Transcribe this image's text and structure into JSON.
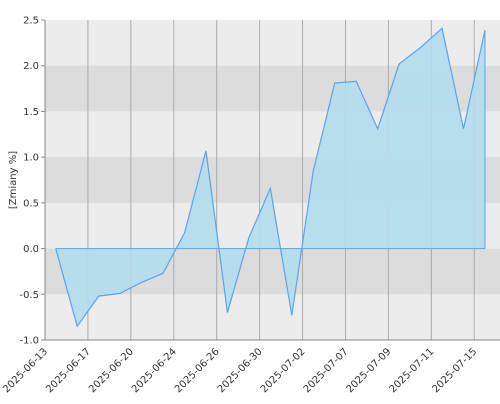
{
  "chart_data": {
    "type": "area",
    "ylabel": "[Zmiany %]",
    "x": [
      0.5,
      1.5,
      2.5,
      3.5,
      4.5,
      5.5,
      6.5,
      7.5,
      8.5,
      9.5,
      10.5,
      11.5,
      12.5,
      13.5,
      14.5,
      15.5,
      16.5,
      17.5,
      18.5,
      19.5,
      20.5
    ],
    "values": [
      0.0,
      -0.85,
      -0.52,
      -0.49,
      -0.37,
      -0.27,
      0.17,
      1.07,
      -0.7,
      0.12,
      0.66,
      -0.73,
      0.85,
      1.81,
      1.83,
      1.31,
      2.02,
      2.2,
      2.41,
      1.31,
      2.39
    ],
    "color": "#5ba3e8",
    "fill": "#b3dcec",
    "xlim": [
      0,
      21.2
    ],
    "xticks": [
      {
        "value": 0,
        "label": "2025-06-13"
      },
      {
        "value": 2,
        "label": "2025-06-17"
      },
      {
        "value": 4,
        "label": "2025-06-20"
      },
      {
        "value": 6,
        "label": "2025-06-24"
      },
      {
        "value": 8,
        "label": "2025-06-26"
      },
      {
        "value": 10,
        "label": "2025-06-30"
      },
      {
        "value": 12,
        "label": "2025-07-02"
      },
      {
        "value": 14,
        "label": "2025-07-07"
      },
      {
        "value": 16,
        "label": "2025-07-09"
      },
      {
        "value": 18,
        "label": "2025-07-11"
      },
      {
        "value": 20,
        "label": "2025-07-15"
      }
    ],
    "ylim": [
      -1.0,
      2.5
    ],
    "yticks": [
      2.5,
      {
        "value": 2,
        "label": "2.0"
      },
      1.5,
      {
        "value": 1,
        "label": "1.0"
      },
      0.5,
      {
        "value": 0,
        "label": "0.0"
      },
      -0.5,
      {
        "value": -1,
        "label": "-1.0"
      }
    ],
    "grid": true
  }
}
